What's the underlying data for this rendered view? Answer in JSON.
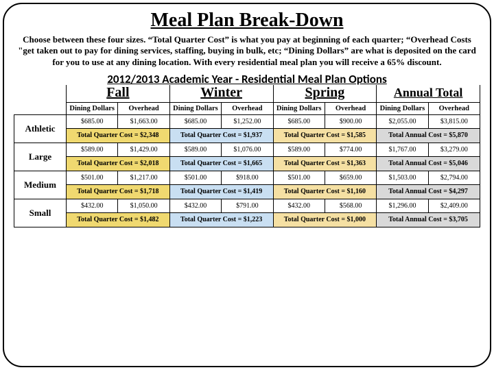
{
  "title": "Meal Plan Break-Down",
  "description": "Choose between these four sizes. “Total Quarter Cost” is what you pay at beginning of each quarter; “Overhead Costs \"get taken out to pay for dining services, staffing, buying in bulk, etc;\n“Dining Dollars” are what is deposited on the card for you to use at any dining location. With every residential meal plan you will receive a 65% discount.",
  "year_title": "2012/2013 Academic Year - Residential Meal Plan Options",
  "seasons": {
    "fall": {
      "label": "Fall",
      "dining_hdr": "Dining Dollars",
      "overhead_hdr": "Overhead"
    },
    "winter": {
      "label": "Winter",
      "dining_hdr": "Dining Dollars",
      "overhead_hdr": "Overhead"
    },
    "spring": {
      "label": "Spring",
      "dining_hdr": "Dining Dollars",
      "overhead_hdr": "Overhead"
    },
    "annual": {
      "label": "Annual Total",
      "dining_hdr": "Dining Dollars",
      "overhead_hdr": "Overhead"
    }
  },
  "plans": {
    "athletic": {
      "label": "Athletic",
      "fall": {
        "dining": "$685.00",
        "overhead": "$1,663.00",
        "total": "Total Quarter Cost = $2,348"
      },
      "winter": {
        "dining": "$685.00",
        "overhead": "$1,252.00",
        "total": "Total Quarter Cost = $1,937"
      },
      "spring": {
        "dining": "$685.00",
        "overhead": "$900.00",
        "total": "Total Quarter Cost = $1,585"
      },
      "annual": {
        "dining": "$2,055.00",
        "overhead": "$3,815.00",
        "total": "Total Annual Cost = $5,870"
      }
    },
    "large": {
      "label": "Large",
      "fall": {
        "dining": "$589.00",
        "overhead": "$1,429.00",
        "total": "Total Quarter Cost = $2,018"
      },
      "winter": {
        "dining": "$589.00",
        "overhead": "$1,076.00",
        "total": "Total Quarter Cost = $1,665"
      },
      "spring": {
        "dining": "$589.00",
        "overhead": "$774.00",
        "total": "Total Quarter Cost = $1,363"
      },
      "annual": {
        "dining": "$1,767.00",
        "overhead": "$3,279.00",
        "total": "Total Annual Cost = $5,046"
      }
    },
    "medium": {
      "label": "Medium",
      "fall": {
        "dining": "$501.00",
        "overhead": "$1,217.00",
        "total": "Total Quarter Cost = $1,718"
      },
      "winter": {
        "dining": "$501.00",
        "overhead": "$918.00",
        "total": "Total Quarter Cost = $1,419"
      },
      "spring": {
        "dining": "$501.00",
        "overhead": "$659.00",
        "total": "Total Quarter Cost = $1,160"
      },
      "annual": {
        "dining": "$1,503.00",
        "overhead": "$2,794.00",
        "total": "Total Annual Cost = $4,297"
      }
    },
    "small": {
      "label": "Small",
      "fall": {
        "dining": "$432.00",
        "overhead": "$1,050.00",
        "total": "Total Quarter Cost = $1,482"
      },
      "winter": {
        "dining": "$432.00",
        "overhead": "$791.00",
        "total": "Total Quarter Cost = $1,223"
      },
      "spring": {
        "dining": "$432.00",
        "overhead": "$568.00",
        "total": "Total Quarter Cost = $1,000"
      },
      "annual": {
        "dining": "$1,296.00",
        "overhead": "$2,409.00",
        "total": "Total Annual Cost = $3,705"
      }
    }
  }
}
